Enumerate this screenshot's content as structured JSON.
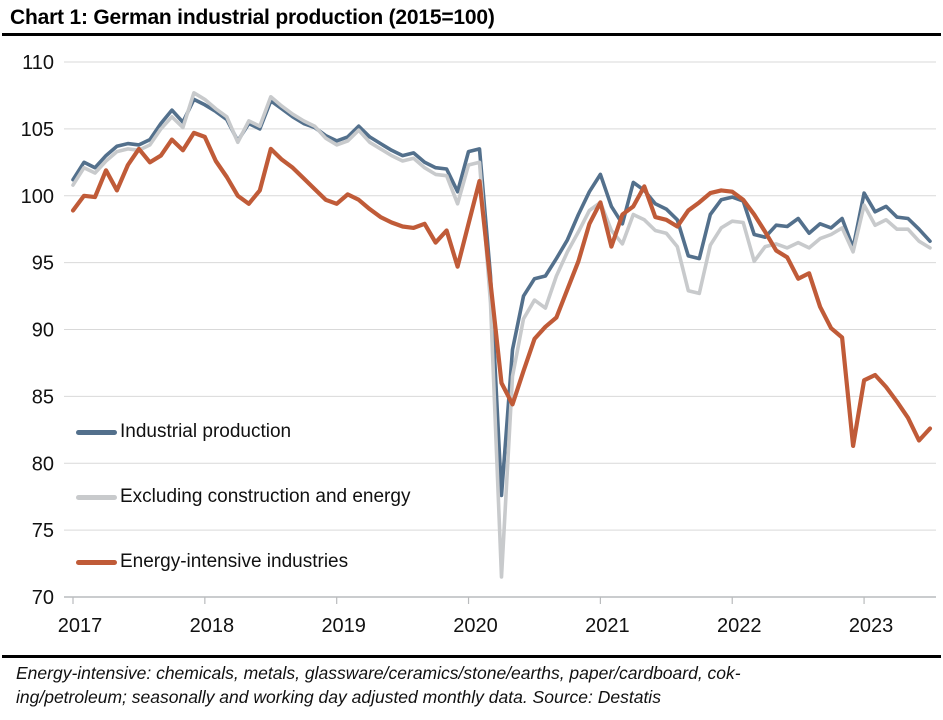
{
  "title": "Chart 1: German industrial production (2015=100)",
  "footer": {
    "line1": "Energy-intensive: chemicals, metals, glassware/ceramics/stone/earths, paper/cardboard, cok-",
    "line2": "ing/petroleum; seasonally and working day adjusted monthly data. Source: Destatis"
  },
  "chart_data": {
    "type": "line",
    "title": "Chart 1: German industrial production (2015=100)",
    "x_start": "2017-01",
    "x_end": "2023-07",
    "x_tick_labels": [
      "2017",
      "2018",
      "2019",
      "2020",
      "2021",
      "2022",
      "2023"
    ],
    "y_ticks": [
      70,
      75,
      80,
      85,
      90,
      95,
      100,
      105,
      110
    ],
    "ylim": [
      70,
      110
    ],
    "grid": "horizontal-only",
    "legend_position": "inside-bottom-left",
    "gridline_color": "#d9d9d9",
    "axis_color": "#b9bbbd",
    "series": [
      {
        "name": "Industrial production",
        "color": "#53708c",
        "values": [
          101.2,
          102.5,
          102.1,
          103.0,
          103.7,
          103.9,
          103.8,
          104.2,
          105.4,
          106.4,
          105.5,
          107.2,
          106.8,
          106.3,
          105.7,
          104.1,
          105.4,
          105.0,
          107.1,
          106.5,
          105.9,
          105.4,
          105.1,
          104.5,
          104.1,
          104.4,
          105.2,
          104.4,
          103.9,
          103.4,
          103.0,
          103.2,
          102.5,
          102.1,
          102.0,
          100.3,
          103.3,
          103.5,
          94.0,
          77.6,
          88.5,
          92.5,
          93.8,
          94.0,
          95.3,
          96.7,
          98.6,
          100.3,
          101.6,
          99.2,
          97.9,
          101.0,
          100.4,
          99.4,
          99.0,
          98.2,
          95.5,
          95.3,
          98.6,
          99.7,
          99.9,
          99.6,
          97.1,
          96.9,
          97.8,
          97.7,
          98.3,
          97.2,
          97.9,
          97.6,
          98.3,
          96.1,
          100.2,
          98.8,
          99.2,
          98.4,
          98.3,
          97.5,
          96.6
        ]
      },
      {
        "name": "Excluding construction and energy",
        "color": "#c8cacc",
        "values": [
          100.8,
          102.1,
          101.7,
          102.6,
          103.3,
          103.5,
          103.4,
          103.8,
          105.0,
          105.9,
          105.1,
          107.7,
          107.2,
          106.5,
          105.9,
          104.0,
          105.6,
          105.2,
          107.4,
          106.7,
          106.1,
          105.6,
          105.2,
          104.3,
          103.8,
          104.1,
          104.9,
          104.0,
          103.5,
          103.0,
          102.6,
          102.8,
          102.1,
          101.6,
          101.5,
          99.4,
          102.3,
          102.5,
          92.0,
          71.5,
          86.5,
          90.8,
          92.2,
          91.6,
          94.0,
          95.8,
          97.3,
          98.9,
          99.5,
          97.4,
          96.4,
          98.6,
          98.2,
          97.4,
          97.2,
          96.2,
          92.9,
          92.7,
          96.3,
          97.6,
          98.1,
          98.0,
          95.1,
          96.2,
          96.4,
          96.1,
          96.5,
          96.1,
          96.8,
          97.1,
          97.6,
          95.8,
          99.3,
          97.8,
          98.2,
          97.5,
          97.5,
          96.6,
          96.1
        ]
      },
      {
        "name": "Energy-intensive industries",
        "color": "#c05b38",
        "values": [
          98.9,
          100.0,
          99.9,
          101.9,
          100.4,
          102.3,
          103.5,
          102.5,
          103.0,
          104.2,
          103.4,
          104.7,
          104.4,
          102.6,
          101.4,
          100.0,
          99.4,
          100.4,
          103.5,
          102.7,
          102.1,
          101.3,
          100.5,
          99.7,
          99.4,
          100.1,
          99.7,
          99.0,
          98.4,
          98.0,
          97.7,
          97.6,
          97.9,
          96.5,
          97.4,
          94.7,
          97.9,
          101.1,
          93.5,
          86.0,
          84.4,
          86.9,
          89.3,
          90.2,
          90.9,
          93.0,
          95.1,
          97.9,
          99.5,
          96.2,
          98.6,
          99.2,
          100.7,
          98.4,
          98.2,
          97.7,
          98.9,
          99.5,
          100.2,
          100.4,
          100.3,
          99.7,
          98.6,
          97.3,
          95.9,
          95.4,
          93.8,
          94.2,
          91.7,
          90.1,
          89.4,
          81.3,
          86.2,
          86.6,
          85.7,
          84.6,
          83.4,
          81.7,
          82.6
        ]
      }
    ]
  }
}
